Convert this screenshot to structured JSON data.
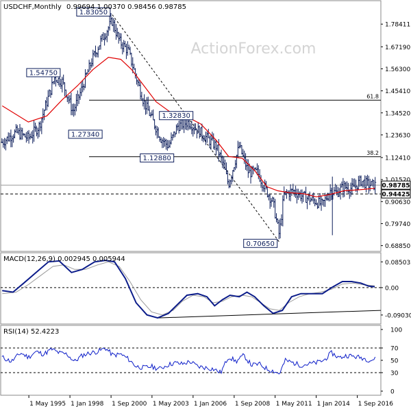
{
  "chart_data": [
    {
      "type": "candlestick",
      "title": "USDCHF,Monthly",
      "ohlc_label": "0.99694 1.00370 0.98456 0.98785",
      "watermark": "ActionForex.com",
      "ylim": [
        0.66,
        1.9
      ],
      "yticks": [
        "1.78411",
        "1.67190",
        "1.56300",
        "1.45410",
        "1.34520",
        "1.23630",
        "1.12410",
        "1.01520",
        "0.90630",
        "0.79740",
        "0.68850"
      ],
      "current_price": "0.98785",
      "support_level": "0.94425",
      "fib_levels": [
        {
          "label": "61.8",
          "value": 1.4077
        },
        {
          "label": "38.2",
          "value": 1.1282
        }
      ],
      "annotations": [
        {
          "label": "1.83050",
          "date": 2000.75,
          "value": 1.8305
        },
        {
          "label": "1.54750",
          "date": 1997.5,
          "value": 1.5475
        },
        {
          "label": "1.27340",
          "date": 1998.0,
          "value": 1.2734
        },
        {
          "label": "1.32830",
          "date": 2003.9,
          "value": 1.3283
        },
        {
          "label": "1.12880",
          "date": 2003.9,
          "value": 1.1288
        },
        {
          "label": "0.70650",
          "date": 2011.6,
          "value": 0.7065
        }
      ],
      "x_tick_labels": [
        "1 May 1995",
        "1 Jan 1998",
        "1 Sep 2000",
        "1 May 2003",
        "1 Jan 2006",
        "1 Sep 2008",
        "1 May 2011",
        "1 Jan 2014",
        "1 Sep 2016"
      ],
      "x_tick_dates": [
        1995.33,
        1998.0,
        2000.67,
        2003.33,
        2006.0,
        2008.67,
        2011.33,
        2014.0,
        2016.67
      ],
      "price_path": [
        [
          1993.6,
          1.2
        ],
        [
          1994.5,
          1.25
        ],
        [
          1995.3,
          1.22
        ],
        [
          1996.0,
          1.28
        ],
        [
          1996.5,
          1.4
        ],
        [
          1997.0,
          1.52
        ],
        [
          1997.5,
          1.5
        ],
        [
          1998.2,
          1.35
        ],
        [
          1998.7,
          1.45
        ],
        [
          1999.4,
          1.6
        ],
        [
          2000.0,
          1.7
        ],
        [
          2000.75,
          1.8
        ],
        [
          2001.2,
          1.7
        ],
        [
          2001.8,
          1.65
        ],
        [
          2002.3,
          1.52
        ],
        [
          2002.8,
          1.4
        ],
        [
          2003.3,
          1.32
        ],
        [
          2003.9,
          1.22
        ],
        [
          2004.4,
          1.18
        ],
        [
          2005.0,
          1.28
        ],
        [
          2005.7,
          1.3
        ],
        [
          2006.3,
          1.26
        ],
        [
          2006.9,
          1.22
        ],
        [
          2007.5,
          1.18
        ],
        [
          2008.0,
          1.08
        ],
        [
          2008.3,
          0.99
        ],
        [
          2008.7,
          1.1
        ],
        [
          2009.0,
          1.18
        ],
        [
          2009.6,
          1.05
        ],
        [
          2010.2,
          1.05
        ],
        [
          2010.7,
          0.97
        ],
        [
          2011.2,
          0.9
        ],
        [
          2011.6,
          0.74
        ],
        [
          2011.9,
          0.94
        ],
        [
          2012.5,
          0.96
        ],
        [
          2013.2,
          0.93
        ],
        [
          2013.9,
          0.91
        ],
        [
          2014.4,
          0.89
        ],
        [
          2014.9,
          0.96
        ],
        [
          2015.3,
          0.95
        ],
        [
          2015.8,
          0.98
        ],
        [
          2016.4,
          0.97
        ],
        [
          2016.9,
          1.01
        ],
        [
          2017.4,
          0.99
        ],
        [
          2017.8,
          0.988
        ]
      ],
      "ma_path": [
        [
          1993.6,
          1.38
        ],
        [
          1995.3,
          1.3
        ],
        [
          1996.5,
          1.33
        ],
        [
          1997.5,
          1.41
        ],
        [
          1998.5,
          1.48
        ],
        [
          1999.5,
          1.56
        ],
        [
          2000.5,
          1.62
        ],
        [
          2001.3,
          1.61
        ],
        [
          2002.0,
          1.56
        ],
        [
          2002.8,
          1.48
        ],
        [
          2003.6,
          1.4
        ],
        [
          2004.5,
          1.35
        ],
        [
          2005.5,
          1.33
        ],
        [
          2006.5,
          1.29
        ],
        [
          2007.5,
          1.21
        ],
        [
          2008.3,
          1.13
        ],
        [
          2009.2,
          1.12
        ],
        [
          2010.0,
          1.06
        ],
        [
          2010.8,
          0.98
        ],
        [
          2011.5,
          0.96
        ],
        [
          2012.3,
          0.95
        ],
        [
          2013.2,
          0.945
        ],
        [
          2014.0,
          0.93
        ],
        [
          2014.8,
          0.94
        ],
        [
          2015.8,
          0.96
        ],
        [
          2016.8,
          0.965
        ],
        [
          2017.8,
          0.972
        ]
      ],
      "trendline": [
        [
          2000.75,
          1.8305
        ],
        [
          2011.6,
          0.7065
        ]
      ]
    },
    {
      "type": "line",
      "title": "MACD(12,26,9) 0.002945 0.005944",
      "ylim": [
        -0.12,
        0.115
      ],
      "yticks": [
        "0.085032",
        "0.00",
        "-0.090302"
      ],
      "series": [
        {
          "values": [
            [
              1993.6,
              -0.01
            ],
            [
              1994.3,
              -0.015
            ],
            [
              1995.0,
              0.015
            ],
            [
              1995.8,
              0.05
            ],
            [
              1996.6,
              0.085
            ],
            [
              1997.3,
              0.088
            ],
            [
              1998.1,
              0.05
            ],
            [
              1998.8,
              0.06
            ],
            [
              1999.6,
              0.085
            ],
            [
              2000.3,
              0.09
            ],
            [
              2000.9,
              0.085
            ],
            [
              2001.6,
              0.03
            ],
            [
              2002.3,
              -0.05
            ],
            [
              2003.0,
              -0.09
            ],
            [
              2003.7,
              -0.1
            ],
            [
              2004.4,
              -0.085
            ],
            [
              2005.0,
              -0.055
            ],
            [
              2005.6,
              -0.025
            ],
            [
              2006.3,
              -0.02
            ],
            [
              2006.9,
              -0.03
            ],
            [
              2007.4,
              -0.06
            ],
            [
              2007.9,
              -0.04
            ],
            [
              2008.4,
              -0.025
            ],
            [
              2009.0,
              -0.03
            ],
            [
              2009.5,
              -0.015
            ],
            [
              2010.0,
              -0.03
            ],
            [
              2010.6,
              -0.06
            ],
            [
              2011.2,
              -0.085
            ],
            [
              2011.8,
              -0.075
            ],
            [
              2012.4,
              -0.03
            ],
            [
              2013.0,
              -0.02
            ],
            [
              2013.8,
              -0.02
            ],
            [
              2014.4,
              -0.02
            ],
            [
              2015.0,
              0.0
            ],
            [
              2015.7,
              0.02
            ],
            [
              2016.3,
              0.02
            ],
            [
              2016.9,
              0.015
            ],
            [
              2017.4,
              0.005
            ],
            [
              2017.8,
              0.003
            ]
          ]
        },
        {
          "values": [
            [
              1993.6,
              -0.02
            ],
            [
              1994.5,
              -0.015
            ],
            [
              1995.3,
              0.01
            ],
            [
              1996.1,
              0.04
            ],
            [
              1996.9,
              0.07
            ],
            [
              1997.6,
              0.075
            ],
            [
              1998.3,
              0.06
            ],
            [
              1999.0,
              0.06
            ],
            [
              1999.8,
              0.075
            ],
            [
              2000.5,
              0.085
            ],
            [
              2001.2,
              0.07
            ],
            [
              2001.9,
              0.02
            ],
            [
              2002.6,
              -0.04
            ],
            [
              2003.3,
              -0.08
            ],
            [
              2004.0,
              -0.09
            ],
            [
              2004.7,
              -0.075
            ],
            [
              2005.3,
              -0.045
            ],
            [
              2006.0,
              -0.025
            ],
            [
              2006.7,
              -0.03
            ],
            [
              2007.3,
              -0.05
            ],
            [
              2007.9,
              -0.045
            ],
            [
              2008.5,
              -0.03
            ],
            [
              2009.2,
              -0.025
            ],
            [
              2009.8,
              -0.03
            ],
            [
              2010.4,
              -0.05
            ],
            [
              2011.0,
              -0.07
            ],
            [
              2011.6,
              -0.075
            ],
            [
              2012.2,
              -0.05
            ],
            [
              2012.9,
              -0.03
            ],
            [
              2013.6,
              -0.02
            ],
            [
              2014.3,
              -0.015
            ],
            [
              2015.0,
              -0.005
            ],
            [
              2015.7,
              0.012
            ],
            [
              2016.4,
              0.015
            ],
            [
              2017.0,
              0.01
            ],
            [
              2017.8,
              0.006
            ]
          ]
        }
      ],
      "trendline": [
        [
          2003.7,
          -0.1
        ],
        [
          2017.8,
          -0.075
        ]
      ]
    },
    {
      "type": "line",
      "title": "RSI(14) 52.4223",
      "ylim": [
        0,
        100
      ],
      "yticks": [
        "100",
        "70",
        "50",
        "30",
        "0"
      ],
      "levels": [
        70,
        30
      ],
      "series": [
        {
          "values": [
            [
              1993.6,
              55
            ],
            [
              1994.2,
              48
            ],
            [
              1994.8,
              62
            ],
            [
              1995.3,
              55
            ],
            [
              1995.8,
              64
            ],
            [
              1996.3,
              60
            ],
            [
              1996.8,
              68
            ],
            [
              1997.3,
              62
            ],
            [
              1997.8,
              60
            ],
            [
              1998.3,
              48
            ],
            [
              1998.8,
              58
            ],
            [
              1999.3,
              62
            ],
            [
              1999.8,
              64
            ],
            [
              2000.3,
              70
            ],
            [
              2000.8,
              58
            ],
            [
              2001.3,
              60
            ],
            [
              2001.8,
              52
            ],
            [
              2002.3,
              40
            ],
            [
              2002.8,
              38
            ],
            [
              2003.3,
              40
            ],
            [
              2003.8,
              36
            ],
            [
              2004.3,
              42
            ],
            [
              2004.8,
              46
            ],
            [
              2005.3,
              44
            ],
            [
              2005.8,
              48
            ],
            [
              2006.3,
              40
            ],
            [
              2006.8,
              38
            ],
            [
              2007.3,
              36
            ],
            [
              2007.8,
              30
            ],
            [
              2008.3,
              56
            ],
            [
              2008.8,
              48
            ],
            [
              2009.3,
              58
            ],
            [
              2009.8,
              42
            ],
            [
              2010.3,
              44
            ],
            [
              2010.8,
              36
            ],
            [
              2011.3,
              32
            ],
            [
              2011.6,
              28
            ],
            [
              2012.0,
              50
            ],
            [
              2012.5,
              46
            ],
            [
              2013.0,
              42
            ],
            [
              2013.5,
              44
            ],
            [
              2014.0,
              46
            ],
            [
              2014.5,
              50
            ],
            [
              2015.0,
              62
            ],
            [
              2015.5,
              54
            ],
            [
              2016.0,
              58
            ],
            [
              2016.5,
              56
            ],
            [
              2017.0,
              54
            ],
            [
              2017.5,
              50
            ],
            [
              2017.8,
              52
            ]
          ]
        }
      ]
    }
  ]
}
